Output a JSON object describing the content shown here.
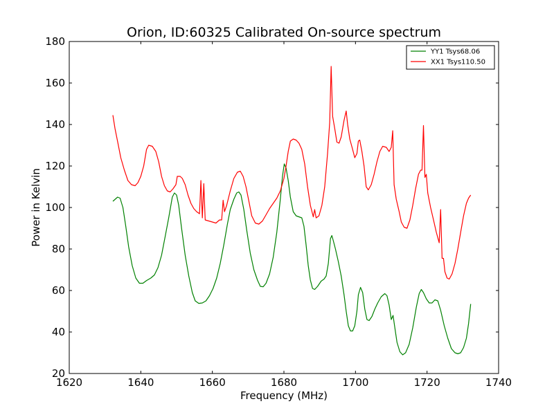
{
  "chart_data": {
    "type": "line",
    "title": "Orion, ID:60325 Calibrated On-source spectrum",
    "xlabel": "Frequency (MHz)",
    "ylabel": "Power in Kelvin",
    "xlim": [
      1620,
      1740
    ],
    "ylim": [
      20,
      180
    ],
    "xticks": [
      1620,
      1640,
      1660,
      1680,
      1700,
      1720,
      1740
    ],
    "yticks": [
      20,
      40,
      60,
      80,
      100,
      120,
      140,
      160,
      180
    ],
    "grid": false,
    "legend_position": "top-right",
    "series": [
      {
        "name": "YY1 Tsys68.06",
        "color": "#008000",
        "points": [
          [
            1632.2,
            103
          ],
          [
            1633.5,
            105
          ],
          [
            1634.2,
            104.5
          ],
          [
            1635,
            100
          ],
          [
            1635.8,
            91
          ],
          [
            1636.6,
            81
          ],
          [
            1637.6,
            72
          ],
          [
            1638.6,
            66
          ],
          [
            1639.6,
            63.5
          ],
          [
            1640.6,
            63.5
          ],
          [
            1641.6,
            64.8
          ],
          [
            1642.8,
            66
          ],
          [
            1643.8,
            67.5
          ],
          [
            1644.8,
            71
          ],
          [
            1645.8,
            77
          ],
          [
            1646.8,
            86
          ],
          [
            1647.8,
            95
          ],
          [
            1648.8,
            105
          ],
          [
            1649.4,
            107
          ],
          [
            1650,
            106
          ],
          [
            1650.6,
            101
          ],
          [
            1651.4,
            90
          ],
          [
            1652.4,
            77
          ],
          [
            1653.4,
            67
          ],
          [
            1654.4,
            59
          ],
          [
            1655.2,
            55
          ],
          [
            1656.2,
            53.8
          ],
          [
            1657.2,
            54
          ],
          [
            1658.2,
            55
          ],
          [
            1659.2,
            57.5
          ],
          [
            1660.2,
            61
          ],
          [
            1661.2,
            66
          ],
          [
            1662.2,
            73
          ],
          [
            1663.2,
            82
          ],
          [
            1664.2,
            92
          ],
          [
            1665,
            99
          ],
          [
            1666,
            104
          ],
          [
            1666.8,
            107
          ],
          [
            1667.4,
            107.5
          ],
          [
            1668,
            106
          ],
          [
            1668.8,
            99
          ],
          [
            1669.6,
            89
          ],
          [
            1670.6,
            78
          ],
          [
            1671.6,
            70
          ],
          [
            1672.6,
            65
          ],
          [
            1673.4,
            62
          ],
          [
            1674.2,
            61.8
          ],
          [
            1675,
            63.5
          ],
          [
            1676,
            68
          ],
          [
            1677,
            76
          ],
          [
            1678,
            88
          ],
          [
            1679,
            104
          ],
          [
            1679.6,
            115
          ],
          [
            1680.1,
            121
          ],
          [
            1680.6,
            119
          ],
          [
            1681.2,
            113
          ],
          [
            1681.8,
            105
          ],
          [
            1682.6,
            98
          ],
          [
            1683.4,
            96
          ],
          [
            1684.2,
            95.5
          ],
          [
            1685,
            95
          ],
          [
            1685.6,
            91
          ],
          [
            1686.2,
            82
          ],
          [
            1686.8,
            72
          ],
          [
            1687.4,
            65
          ],
          [
            1688,
            61
          ],
          [
            1688.6,
            60.5
          ],
          [
            1689.4,
            62
          ],
          [
            1690.4,
            64.5
          ],
          [
            1691.2,
            65.5
          ],
          [
            1691.8,
            67
          ],
          [
            1692.4,
            73
          ],
          [
            1693,
            85
          ],
          [
            1693.4,
            86.5
          ],
          [
            1693.8,
            84
          ],
          [
            1694.4,
            80
          ],
          [
            1695.2,
            74
          ],
          [
            1696,
            67
          ],
          [
            1696.8,
            58
          ],
          [
            1697.4,
            50
          ],
          [
            1698,
            43
          ],
          [
            1698.6,
            40.5
          ],
          [
            1699.2,
            40.5
          ],
          [
            1699.8,
            43
          ],
          [
            1700.4,
            50
          ],
          [
            1700.8,
            58
          ],
          [
            1701.4,
            61.5
          ],
          [
            1702,
            59
          ],
          [
            1702.6,
            51
          ],
          [
            1703.2,
            46
          ],
          [
            1703.8,
            45.5
          ],
          [
            1704.6,
            47.5
          ],
          [
            1705.4,
            51
          ],
          [
            1706.2,
            54
          ],
          [
            1707.2,
            57
          ],
          [
            1708.2,
            58.5
          ],
          [
            1708.8,
            57.5
          ],
          [
            1709.4,
            53
          ],
          [
            1710,
            46
          ],
          [
            1710.5,
            48
          ],
          [
            1711,
            42
          ],
          [
            1711.6,
            35
          ],
          [
            1712.4,
            30.5
          ],
          [
            1713.2,
            29
          ],
          [
            1714,
            30
          ],
          [
            1715,
            34
          ],
          [
            1716,
            42
          ],
          [
            1717,
            52
          ],
          [
            1717.8,
            58.5
          ],
          [
            1718.4,
            60.5
          ],
          [
            1719,
            59
          ],
          [
            1719.8,
            56
          ],
          [
            1720.6,
            54
          ],
          [
            1721.4,
            54
          ],
          [
            1722.2,
            55.5
          ],
          [
            1723,
            55
          ],
          [
            1723.8,
            50.5
          ],
          [
            1724.8,
            43
          ],
          [
            1725.8,
            37
          ],
          [
            1726.8,
            32
          ],
          [
            1727.8,
            30
          ],
          [
            1728.6,
            29.5
          ],
          [
            1729.4,
            30
          ],
          [
            1730.2,
            32.5
          ],
          [
            1731,
            37
          ],
          [
            1731.6,
            44
          ],
          [
            1732.2,
            53.5
          ]
        ]
      },
      {
        "name": "XX1 Tsys110.50",
        "color": "#ff0000",
        "points": [
          [
            1632.2,
            144.5
          ],
          [
            1632.8,
            138
          ],
          [
            1633.6,
            131
          ],
          [
            1634.4,
            124
          ],
          [
            1635.4,
            118
          ],
          [
            1636.4,
            113
          ],
          [
            1637.4,
            111
          ],
          [
            1638.4,
            110.5
          ],
          [
            1639.2,
            112
          ],
          [
            1640,
            115
          ],
          [
            1640.8,
            120
          ],
          [
            1641.6,
            128
          ],
          [
            1642.2,
            130
          ],
          [
            1643.2,
            129.5
          ],
          [
            1644.2,
            127
          ],
          [
            1645,
            122
          ],
          [
            1645.8,
            115
          ],
          [
            1646.6,
            110.5
          ],
          [
            1647.4,
            108
          ],
          [
            1648.2,
            107.5
          ],
          [
            1649,
            109
          ],
          [
            1649.8,
            111
          ],
          [
            1650.2,
            115
          ],
          [
            1651,
            115
          ],
          [
            1651.6,
            114
          ],
          [
            1652.4,
            111
          ],
          [
            1653.2,
            106
          ],
          [
            1654,
            102
          ],
          [
            1654.8,
            99.5
          ],
          [
            1655.6,
            98
          ],
          [
            1656.4,
            97
          ],
          [
            1656.8,
            113
          ],
          [
            1657.2,
            95
          ],
          [
            1657.6,
            111.5
          ],
          [
            1658,
            94
          ],
          [
            1659,
            93.5
          ],
          [
            1660,
            93
          ],
          [
            1661,
            92.5
          ],
          [
            1662,
            94
          ],
          [
            1662.6,
            94
          ],
          [
            1663,
            103.5
          ],
          [
            1663.4,
            98
          ],
          [
            1664,
            101
          ],
          [
            1665,
            108
          ],
          [
            1666,
            114
          ],
          [
            1667,
            117
          ],
          [
            1667.8,
            117.5
          ],
          [
            1668.6,
            115
          ],
          [
            1669.4,
            110
          ],
          [
            1670.2,
            103
          ],
          [
            1671,
            96
          ],
          [
            1672,
            92.5
          ],
          [
            1673,
            92
          ],
          [
            1674,
            93.5
          ],
          [
            1675,
            96.5
          ],
          [
            1676,
            99.5
          ],
          [
            1677,
            102
          ],
          [
            1678,
            104.5
          ],
          [
            1679,
            108
          ],
          [
            1680,
            114
          ],
          [
            1680.6,
            120
          ],
          [
            1681.2,
            127
          ],
          [
            1681.8,
            132
          ],
          [
            1682.6,
            133
          ],
          [
            1683.4,
            132.5
          ],
          [
            1684.2,
            131
          ],
          [
            1685,
            128
          ],
          [
            1685.8,
            121
          ],
          [
            1686.6,
            110
          ],
          [
            1687.4,
            101
          ],
          [
            1688.2,
            95.5
          ],
          [
            1688.6,
            99
          ],
          [
            1689,
            95
          ],
          [
            1689.8,
            96
          ],
          [
            1690.6,
            101
          ],
          [
            1691.4,
            110
          ],
          [
            1692.2,
            126
          ],
          [
            1692.8,
            141
          ],
          [
            1693.2,
            168
          ],
          [
            1693.6,
            144
          ],
          [
            1694.2,
            138
          ],
          [
            1694.8,
            131.5
          ],
          [
            1695.4,
            131
          ],
          [
            1696,
            134
          ],
          [
            1696.8,
            142
          ],
          [
            1697.4,
            146.5
          ],
          [
            1697.8,
            140
          ],
          [
            1698.4,
            133
          ],
          [
            1699.2,
            128
          ],
          [
            1699.8,
            124
          ],
          [
            1700.4,
            126
          ],
          [
            1700.8,
            132
          ],
          [
            1701.2,
            132.5
          ],
          [
            1701.8,
            127
          ],
          [
            1702.4,
            120
          ],
          [
            1703,
            110
          ],
          [
            1703.6,
            108.5
          ],
          [
            1704.4,
            111
          ],
          [
            1705.2,
            116
          ],
          [
            1706,
            122
          ],
          [
            1706.8,
            127
          ],
          [
            1707.6,
            129.5
          ],
          [
            1708.6,
            129
          ],
          [
            1709.4,
            127
          ],
          [
            1710,
            129
          ],
          [
            1710.4,
            137
          ],
          [
            1710.8,
            111
          ],
          [
            1711.4,
            104
          ],
          [
            1712.2,
            98
          ],
          [
            1712.8,
            93
          ],
          [
            1713.6,
            90.5
          ],
          [
            1714.4,
            90
          ],
          [
            1715.2,
            94
          ],
          [
            1716,
            101
          ],
          [
            1716.8,
            109
          ],
          [
            1717.6,
            116
          ],
          [
            1718.2,
            118
          ],
          [
            1718.6,
            118
          ],
          [
            1719,
            139.5
          ],
          [
            1719.4,
            114.5
          ],
          [
            1719.8,
            116
          ],
          [
            1720.2,
            107
          ],
          [
            1721,
            100
          ],
          [
            1721.8,
            94
          ],
          [
            1722.6,
            88
          ],
          [
            1723.4,
            83
          ],
          [
            1723.8,
            99
          ],
          [
            1724.2,
            75.5
          ],
          [
            1724.6,
            75.5
          ],
          [
            1725,
            69
          ],
          [
            1725.6,
            66
          ],
          [
            1726.2,
            65.5
          ],
          [
            1727,
            68
          ],
          [
            1727.8,
            73
          ],
          [
            1728.6,
            80
          ],
          [
            1729.4,
            88
          ],
          [
            1730.2,
            96
          ],
          [
            1731,
            102
          ],
          [
            1731.6,
            104.5
          ],
          [
            1732.2,
            106
          ]
        ]
      }
    ]
  }
}
